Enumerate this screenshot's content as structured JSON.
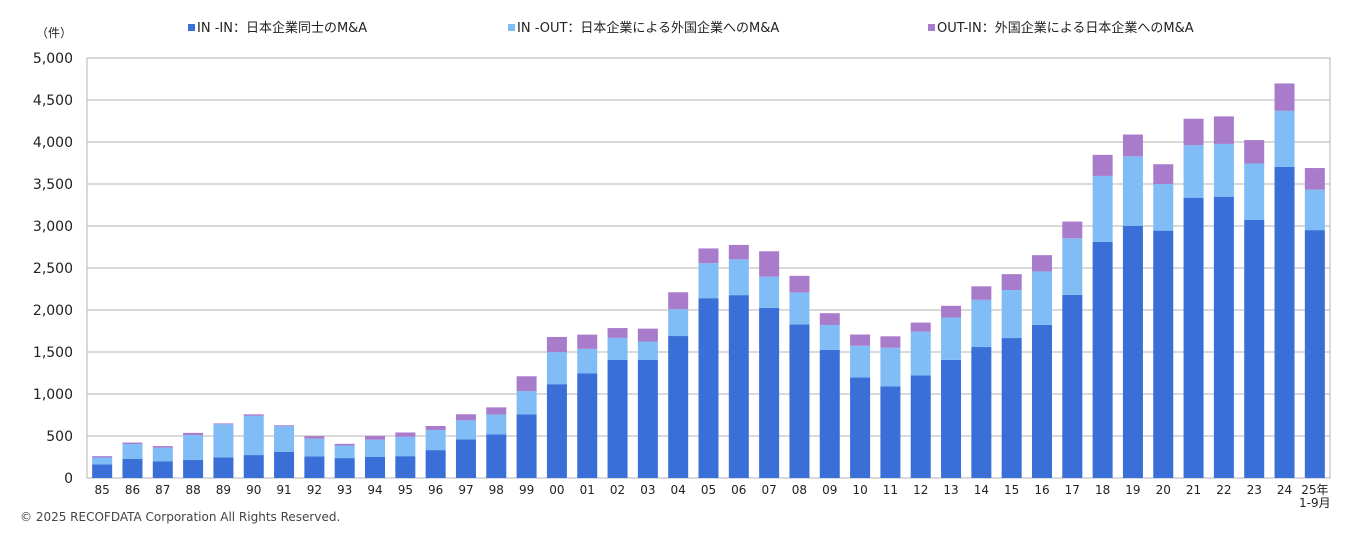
{
  "chart_data": {
    "type": "bar",
    "stacked": true,
    "unit_label": "（件）",
    "ylim": [
      0,
      5000
    ],
    "yticks": [
      0,
      500,
      1000,
      1500,
      2000,
      2500,
      3000,
      3500,
      4000,
      4500,
      5000
    ],
    "ytick_labels": [
      "0",
      "500",
      "1,000",
      "1,500",
      "2,000",
      "2,500",
      "3,000",
      "3,500",
      "4,000",
      "4,500",
      "5,000"
    ],
    "grid": true,
    "legend_position": "top",
    "categories": [
      "85",
      "86",
      "87",
      "88",
      "89",
      "90",
      "91",
      "92",
      "93",
      "94",
      "95",
      "96",
      "97",
      "98",
      "99",
      "00",
      "01",
      "02",
      "03",
      "04",
      "05",
      "06",
      "07",
      "08",
      "09",
      "10",
      "11",
      "12",
      "13",
      "14",
      "15",
      "16",
      "17",
      "18",
      "19",
      "20",
      "21",
      "22",
      "23",
      "24",
      "25年\n1-9月"
    ],
    "series": [
      {
        "name": "IN -IN：日本企業同士のM&A",
        "color": "#3A6FD8",
        "values": [
          163,
          226,
          200,
          214,
          247,
          273,
          313,
          258,
          237,
          250,
          260,
          332,
          461,
          518,
          759,
          1117,
          1244,
          1405,
          1405,
          1690,
          2141,
          2177,
          2026,
          1829,
          1524,
          1196,
          1089,
          1221,
          1406,
          1559,
          1666,
          1824,
          2180,
          2810,
          3001,
          2945,
          3337,
          3349,
          3072,
          3703,
          2951
        ]
      },
      {
        "name": "IN -OUT：日本企業による外国企業へのM&A",
        "color": "#80BDF7",
        "values": [
          81,
          178,
          160,
          297,
          393,
          467,
          303,
          210,
          150,
          206,
          230,
          240,
          225,
          237,
          276,
          382,
          293,
          263,
          220,
          319,
          417,
          426,
          371,
          380,
          298,
          378,
          461,
          521,
          504,
          562,
          571,
          635,
          674,
          786,
          828,
          555,
          625,
          628,
          672,
          668,
          482
        ]
      },
      {
        "name": "OUT-IN：外国企業による日本企業へのM&A",
        "color": "#A97CCB",
        "values": [
          16,
          18,
          20,
          26,
          10,
          18,
          12,
          31,
          20,
          45,
          52,
          47,
          73,
          86,
          176,
          180,
          170,
          117,
          153,
          202,
          175,
          172,
          302,
          198,
          140,
          134,
          137,
          108,
          140,
          161,
          190,
          194,
          199,
          251,
          260,
          235,
          315,
          328,
          279,
          326,
          257
        ]
      }
    ]
  },
  "footer": {
    "copyright": "© 2025 RECOFDATA Corporation All Rights Reserved."
  }
}
